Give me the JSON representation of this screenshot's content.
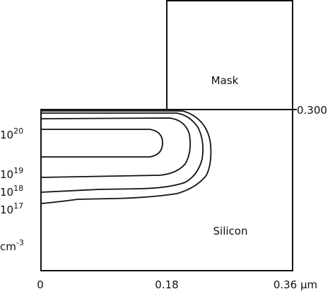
{
  "mask_label": "Mask",
  "silicon_label": "Silicon",
  "depth_label": "0.300",
  "x_ticks": [
    "0",
    "0.18",
    "0.36 μm"
  ],
  "contour_labels": [
    {
      "base": "10",
      "exp": "20"
    },
    {
      "base": "10",
      "exp": "19"
    },
    {
      "base": "10",
      "exp": "18"
    },
    {
      "base": "10",
      "exp": "17"
    }
  ],
  "unit": {
    "base": "cm",
    "exp": "-3"
  }
}
